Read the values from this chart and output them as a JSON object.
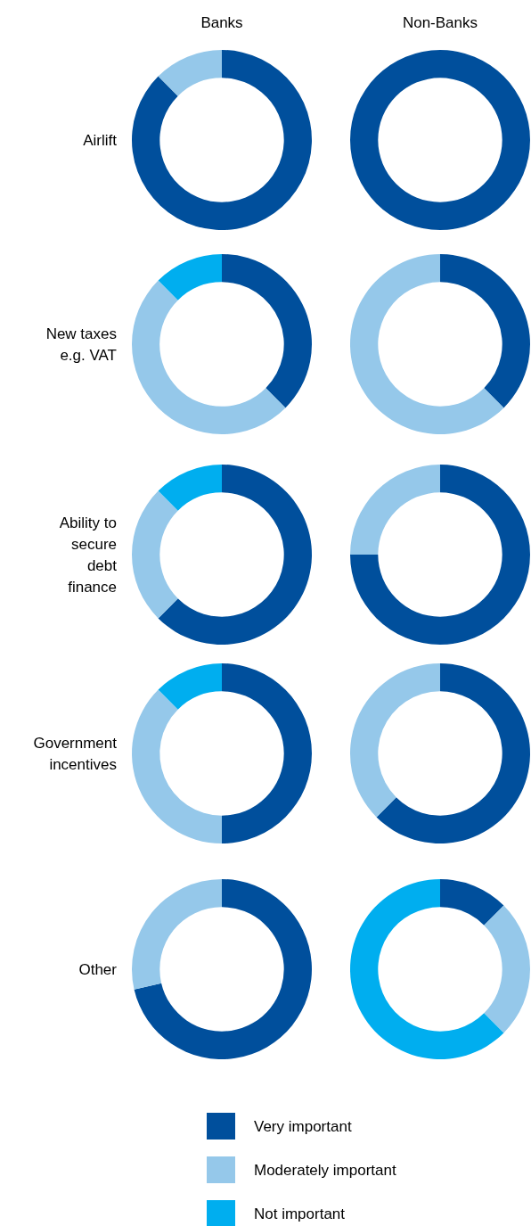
{
  "chart_data": [
    {
      "type": "donut",
      "title": "Banks",
      "ylabel": "Airlift",
      "categories": [
        "Very important",
        "Moderately important",
        "Not important"
      ],
      "values": [
        87.5,
        12.5,
        0
      ],
      "colors": [
        "#004f9c",
        "#95c8ea",
        "#00aeef"
      ],
      "legend": "bottom"
    },
    {
      "type": "donut",
      "title": "Non-Banks",
      "categories": [
        null,
        null,
        null
      ],
      "values": [
        100,
        0,
        0
      ],
      "colors": [
        "#004f9c",
        "#95c8ea",
        "#00aeef"
      ]
    },
    {
      "type": "donut",
      "ylabel": "New taxes e.g. VAT",
      "categories": [
        null,
        null,
        null
      ],
      "values": [
        37.5,
        50,
        12.5
      ],
      "colors": [
        "#004f9c",
        "#95c8ea",
        "#00aeef"
      ]
    },
    {
      "type": "donut",
      "categories": [
        null,
        null,
        null
      ],
      "values": [
        37.5,
        62.5,
        0
      ],
      "colors": [
        "#004f9c",
        "#95c8ea",
        "#00aeef"
      ]
    },
    {
      "type": "donut",
      "ylabel": "Ability to secure debt finance",
      "categories": [
        null,
        null,
        null
      ],
      "values": [
        62.5,
        25,
        12.5
      ],
      "colors": [
        "#004f9c",
        "#95c8ea",
        "#00aeef"
      ]
    },
    {
      "type": "donut",
      "categories": [
        null,
        null,
        null
      ],
      "values": [
        75,
        25,
        0
      ],
      "colors": [
        "#004f9c",
        "#95c8ea",
        "#00aeef"
      ]
    },
    {
      "type": "donut",
      "ylabel": "Government incentives",
      "categories": [
        null,
        null,
        null
      ],
      "values": [
        50,
        37.5,
        12.5
      ],
      "colors": [
        "#004f9c",
        "#95c8ea",
        "#00aeef"
      ]
    },
    {
      "type": "donut",
      "categories": [
        null,
        null,
        null
      ],
      "values": [
        62.5,
        37.5,
        0
      ],
      "colors": [
        "#004f9c",
        "#95c8ea",
        "#00aeef"
      ]
    },
    {
      "type": "donut",
      "ylabel": "Other",
      "categories": [
        null,
        null,
        null
      ],
      "values": [
        71.4,
        28.6,
        0
      ],
      "colors": [
        "#004f9c",
        "#95c8ea",
        "#00aeef"
      ]
    },
    {
      "type": "donut",
      "categories": [
        null,
        null,
        null
      ],
      "values": [
        12.5,
        25,
        62.5
      ],
      "colors": [
        "#004f9c",
        "#95c8ea",
        "#00aeef"
      ]
    }
  ]
}
